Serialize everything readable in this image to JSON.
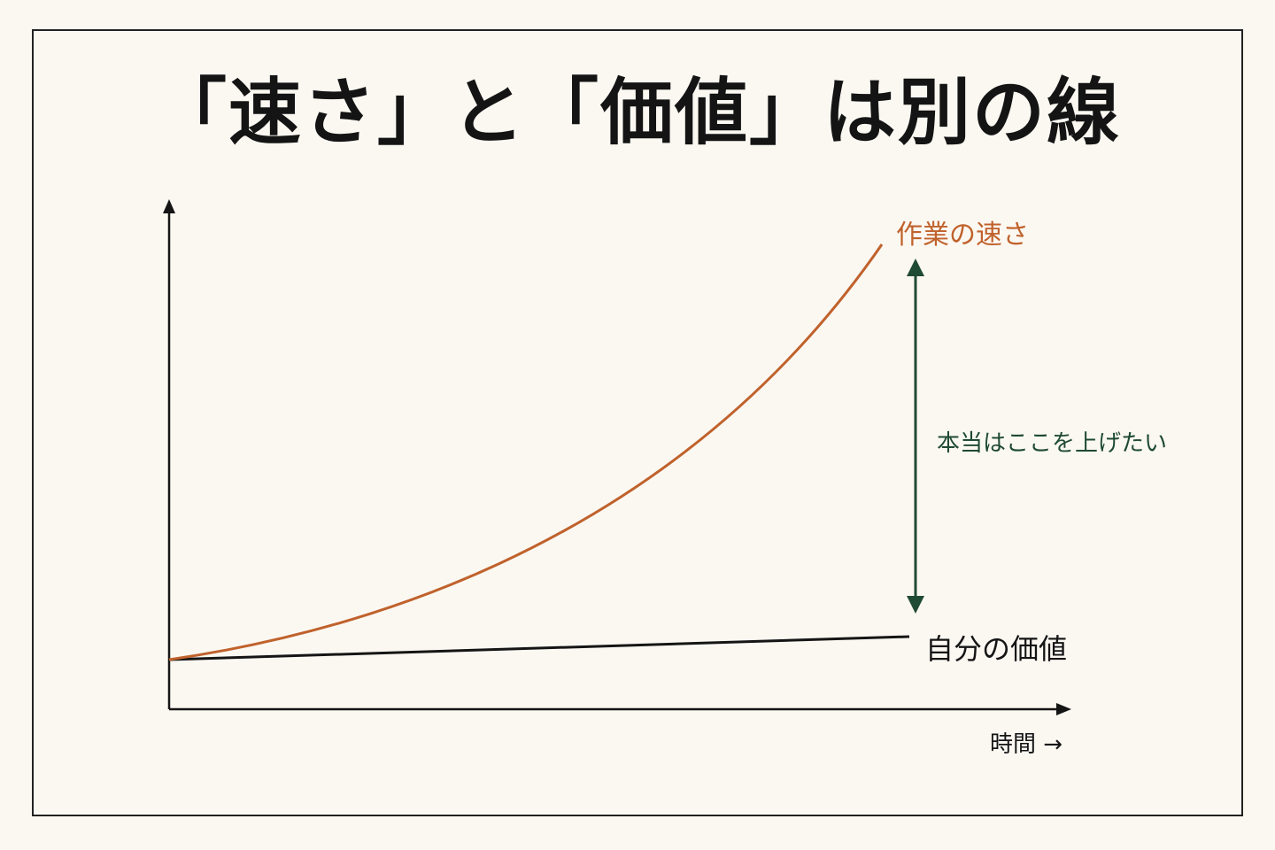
{
  "title": "「速さ」と「価値」は別の線",
  "labels": {
    "speed": "作業の速さ",
    "value": "自分の価値",
    "gap": "本当はここを上げたい",
    "x_axis": "時間 →"
  },
  "colors": {
    "background": "#fbf8f2",
    "frame": "#222222",
    "axis": "#151515",
    "speed_line": "#c0622c",
    "value_line": "#151515",
    "gap_arrow": "#1f4a33"
  },
  "chart_data": {
    "type": "line",
    "title": "「速さ」と「価値」は別の線",
    "xlabel": "時間 →",
    "ylabel": "",
    "series": [
      {
        "name": "作業の速さ",
        "shape": "exponential-growth"
      },
      {
        "name": "自分の価値",
        "shape": "slow-linear-growth"
      }
    ],
    "annotation": {
      "text": "本当はここを上げたい",
      "type": "double-arrow-between-series-ends"
    },
    "grid": false,
    "ticks": false
  }
}
